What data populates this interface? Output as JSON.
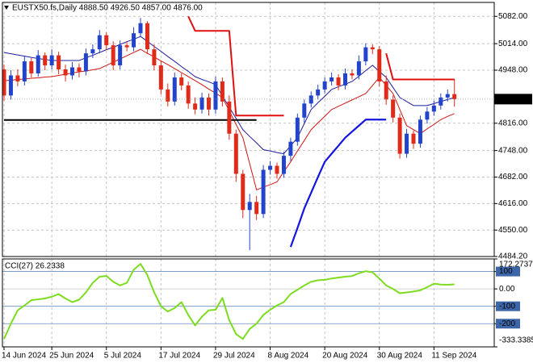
{
  "chart_data": [
    {
      "type": "candlestick",
      "title": "EUSTX50.fs,Daily  4888.50 4926.50 4857.00 4876.00",
      "categories": [
        "14 Jun 2024",
        null,
        null,
        null,
        null,
        null,
        null,
        "25 Jun 2024",
        null,
        null,
        null,
        null,
        null,
        null,
        null,
        "5 Jul 2024",
        null,
        null,
        null,
        null,
        null,
        null,
        null,
        "17 Jul 2024",
        null,
        null,
        null,
        null,
        null,
        null,
        null,
        "29 Jul 2024",
        null,
        null,
        null,
        null,
        null,
        null,
        null,
        "8 Aug 2024",
        null,
        null,
        null,
        null,
        null,
        null,
        null,
        "20 Aug 2024",
        null,
        null,
        null,
        null,
        null,
        null,
        null,
        "30 Aug 2024",
        null,
        null,
        null,
        null,
        null,
        null,
        null,
        "11 Sep 2024",
        null,
        null,
        null
      ],
      "open": [
        4950,
        4885,
        4935,
        4920,
        4970,
        4940,
        4985,
        4960,
        4985,
        4950,
        4935,
        4955,
        4945,
        4990,
        5000,
        5035,
        5010,
        4960,
        5010,
        5005,
        5040,
        5065,
        5000,
        4960,
        4900,
        4870,
        4930,
        4910,
        4865,
        4850,
        4880,
        4850,
        4920,
        4870,
        4790,
        4690,
        4600,
        4620,
        4590,
        4700,
        4710,
        4690,
        4735,
        4770,
        4830,
        4865,
        4885,
        4900,
        4920,
        4930,
        4910,
        4940,
        4935,
        4970,
        5005,
        5000,
        4920,
        4875,
        4830,
        4740,
        4790,
        4765,
        4825,
        4845,
        4860,
        4880,
        4888.5
      ],
      "high": [
        4962,
        4948,
        4950,
        4982,
        4978,
        4998,
        4992,
        5000,
        4994,
        4962,
        4968,
        4965,
        5002,
        5012,
        5048,
        5042,
        5020,
        5022,
        5018,
        5055,
        5078,
        5070,
        5012,
        4970,
        4915,
        4942,
        4940,
        4920,
        4880,
        4892,
        4890,
        4932,
        4930,
        4885,
        4800,
        4700,
        4640,
        4635,
        4712,
        4722,
        4718,
        4745,
        4780,
        4840,
        4875,
        4895,
        4912,
        4930,
        4942,
        4938,
        4952,
        4950,
        4985,
        5015,
        5012,
        5008,
        4935,
        4885,
        4840,
        4802,
        4798,
        4835,
        4856,
        4872,
        4890,
        4900,
        4926.5
      ],
      "low": [
        4872,
        4875,
        4908,
        4910,
        4930,
        4932,
        4948,
        4950,
        4938,
        4920,
        4925,
        4930,
        4935,
        4978,
        4990,
        4998,
        4948,
        4950,
        4995,
        4995,
        5030,
        4988,
        4948,
        4888,
        4858,
        4860,
        4898,
        4852,
        4838,
        4840,
        4835,
        4840,
        4858,
        4775,
        4670,
        4580,
        4500,
        4575,
        4580,
        4688,
        4678,
        4680,
        4722,
        4760,
        4818,
        4855,
        4875,
        4890,
        4910,
        4898,
        4900,
        4925,
        4925,
        4960,
        4988,
        4908,
        4862,
        4818,
        4728,
        4730,
        4752,
        4755,
        4815,
        4835,
        4850,
        4870,
        4857
      ],
      "close": [
        4885,
        4935,
        4920,
        4970,
        4940,
        4985,
        4960,
        4985,
        4950,
        4935,
        4955,
        4945,
        4990,
        5000,
        5035,
        5010,
        4960,
        5010,
        5005,
        5040,
        5065,
        5000,
        4960,
        4900,
        4870,
        4930,
        4910,
        4865,
        4850,
        4880,
        4850,
        4920,
        4870,
        4790,
        4690,
        4600,
        4620,
        4590,
        4700,
        4710,
        4690,
        4735,
        4770,
        4830,
        4865,
        4885,
        4900,
        4920,
        4930,
        4910,
        4940,
        4935,
        4970,
        5005,
        5000,
        4920,
        4875,
        4830,
        4740,
        4790,
        4765,
        4825,
        4845,
        4860,
        4880,
        4888.5,
        4876
      ],
      "up_color": "#2244cc",
      "down_color": "#e02a1a",
      "overlays": [
        {
          "color": "#1c1c9c",
          "width": 1,
          "values": [
            4992,
            4989,
            4986,
            4983,
            4980,
            4977,
            4975,
            4972,
            4972,
            4972,
            4972,
            4972,
            4979,
            4985,
            4992,
            4999,
            5005,
            5012,
            5019,
            5025,
            5032,
            5020,
            5007,
            4995,
            4982,
            4970,
            4957,
            4945,
            4932,
            4925,
            4919,
            4912,
            4884,
            4856,
            4828,
            4800,
            4783,
            4767,
            4750,
            4747,
            4743,
            4740,
            4760,
            4780,
            4815,
            4850,
            4867,
            4883,
            4900,
            4907,
            4913,
            4920,
            4933,
            4947,
            4960,
            4945,
            4930,
            4905,
            4880,
            4870,
            4860,
            4860,
            4860,
            4865,
            4870,
            4875,
            4880
          ]
        },
        {
          "color": "#d01414",
          "width": 1,
          "values": [
            4922,
            4923,
            4925,
            4926,
            4928,
            4929,
            4931,
            4932,
            4935,
            4938,
            4941,
            4944,
            4946,
            4949,
            4952,
            4960,
            4968,
            4976,
            4984,
            4992,
            5000,
            4990,
            4981,
            4971,
            4962,
            4952,
            4942,
            4932,
            4922,
            4912,
            4901,
            4891,
            4880,
            4847,
            4813,
            4780,
            4715,
            4650,
            4657,
            4663,
            4670,
            4695,
            4720,
            4747,
            4773,
            4800,
            4817,
            4833,
            4850,
            4858,
            4866,
            4874,
            4882,
            4890,
            4910,
            4930,
            4910,
            4890,
            4850,
            4810,
            4800,
            4790,
            4802,
            4813,
            4825,
            4833,
            4840
          ]
        },
        {
          "color": "#1414e0",
          "width": 2.2,
          "values": [
            null,
            null,
            null,
            null,
            null,
            null,
            null,
            null,
            null,
            null,
            null,
            null,
            null,
            null,
            null,
            null,
            null,
            null,
            null,
            null,
            null,
            null,
            null,
            null,
            null,
            null,
            null,
            null,
            null,
            null,
            null,
            null,
            null,
            null,
            null,
            null,
            null,
            null,
            null,
            null,
            null,
            null,
            4508,
            4555,
            4604,
            4643,
            4682,
            4720,
            4740,
            4760,
            4780,
            4795,
            4810,
            4825,
            4825,
            4825,
            4825,
            null,
            null,
            null,
            null,
            null,
            null,
            null,
            null,
            null,
            null
          ]
        },
        {
          "color": "#e01010",
          "width": 2,
          "values": [
            null,
            null,
            null,
            null,
            null,
            null,
            null,
            null,
            null,
            null,
            null,
            null,
            null,
            null,
            null,
            null,
            null,
            null,
            null,
            null,
            null,
            null,
            null,
            null,
            null,
            null,
            null,
            5082,
            5046,
            5046,
            5046,
            5046,
            5046,
            5046,
            4835,
            4835,
            4835,
            4835,
            4835,
            4835,
            4835,
            4835,
            null,
            null,
            null,
            null,
            null,
            null,
            null,
            null,
            null,
            null,
            null,
            null,
            null,
            null,
            4990,
            4925,
            4925,
            4925,
            4925,
            4925,
            4925,
            4925,
            4925,
            4925,
            4925
          ]
        },
        {
          "color": "#000000",
          "width": 2,
          "values": [
            4824,
            4824,
            4824,
            4824,
            4824,
            4824,
            4824,
            4824,
            4824,
            4824,
            4824,
            4824,
            4824,
            4824,
            4824,
            4824,
            4824,
            4824,
            4824,
            4824,
            4824,
            4824,
            4824,
            4824,
            4824,
            4824,
            4824,
            4824,
            4824,
            4824,
            4824,
            4824,
            4824,
            4824,
            4824,
            4824,
            4824,
            4824,
            null,
            null,
            null,
            null,
            null,
            null,
            null,
            null,
            null,
            null,
            null,
            null,
            null,
            null,
            null,
            null,
            null,
            null,
            null,
            null,
            null,
            null,
            null,
            null,
            null,
            null,
            null,
            null,
            null
          ]
        }
      ],
      "current_price": {
        "value": 4876,
        "label": "4876.00"
      },
      "ylim": [
        4484.2,
        5116.7
      ],
      "yticks": [
        {
          "value": 5082,
          "label": "5082.00"
        },
        {
          "value": 5014,
          "label": "5014.00"
        },
        {
          "value": 4948,
          "label": "4948.00"
        },
        {
          "value": 4816,
          "label": "4816.00"
        },
        {
          "value": 4748,
          "label": "4748.00"
        },
        {
          "value": 4682,
          "label": "4682.00"
        },
        {
          "value": 4616,
          "label": "4616.00"
        },
        {
          "value": 4550,
          "label": "4550.00"
        },
        {
          "value": 4484.2,
          "label": "4484.20"
        }
      ],
      "grid": true
    },
    {
      "type": "line",
      "title": "CCI(27) 26.2338",
      "color": "#7ddc1f",
      "values": [
        -288,
        -200,
        -123,
        -95,
        -65,
        -60,
        -55,
        -45,
        -30,
        -55,
        -76,
        -62,
        -20,
        35,
        70,
        75,
        41,
        20,
        35,
        110,
        144,
        80,
        -20,
        -100,
        -130,
        -110,
        -76,
        -150,
        -210,
        -160,
        -123,
        -120,
        -52,
        -180,
        -260,
        -288,
        -230,
        -200,
        -150,
        -120,
        -95,
        -76,
        -29,
        -5,
        20,
        41,
        50,
        52,
        60,
        65,
        70,
        74,
        90,
        102,
        95,
        60,
        20,
        0,
        -25,
        -20,
        -15,
        -8,
        10,
        30,
        25,
        24,
        26.2338
      ],
      "ylim": [
        -333.3385,
        172.2737
      ],
      "yticks": [
        172.2737,
        100,
        {
          "value": 0,
          "label": "0.00"
        },
        -100,
        -200,
        -333.3385
      ]
    }
  ]
}
